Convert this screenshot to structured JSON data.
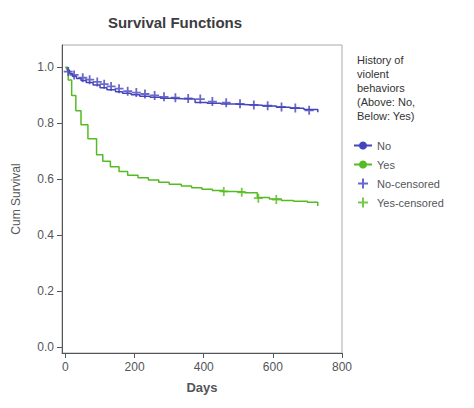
{
  "chart_data": {
    "type": "line",
    "title": "Survival Functions",
    "xlabel": "Days",
    "ylabel": "Cum Survival",
    "xlim": [
      -10,
      800
    ],
    "ylim": [
      -0.02,
      1.08
    ],
    "xticks": [
      0,
      200,
      400,
      600,
      800
    ],
    "yticks": [
      {
        "value": 0.0,
        "label": "0.0"
      },
      0.2,
      0.4,
      0.6,
      0.8,
      {
        "value": 1.0,
        "label": "1.0"
      }
    ],
    "grid": false,
    "legend": "right",
    "legend_title": "History of\nviolent\nbehaviors\n(Above: No,\nBelow: Yes)",
    "series": [
      {
        "name": "No",
        "type": "line",
        "line_style": "step",
        "color": "#4444BB",
        "x": [
          0,
          5,
          12,
          20,
          32,
          45,
          60,
          80,
          100,
          120,
          145,
          165,
          190,
          215,
          245,
          275,
          305,
          340,
          375,
          410,
          450,
          490,
          530,
          570,
          610,
          650,
          690,
          730
        ],
        "values": [
          1.0,
          0.99,
          0.978,
          0.968,
          0.96,
          0.953,
          0.946,
          0.937,
          0.927,
          0.92,
          0.913,
          0.908,
          0.902,
          0.897,
          0.893,
          0.89,
          0.888,
          0.887,
          0.875,
          0.872,
          0.869,
          0.867,
          0.865,
          0.862,
          0.858,
          0.854,
          0.85,
          0.84
        ]
      },
      {
        "name": "Yes",
        "type": "line",
        "line_style": "step",
        "color": "#55BB22",
        "x": [
          0,
          8,
          18,
          30,
          45,
          65,
          90,
          108,
          130,
          155,
          180,
          210,
          240,
          270,
          300,
          335,
          365,
          395,
          425,
          455,
          490,
          520,
          555,
          590,
          625,
          660,
          700,
          730
        ],
        "values": [
          1.0,
          0.955,
          0.9,
          0.845,
          0.795,
          0.745,
          0.688,
          0.665,
          0.645,
          0.628,
          0.615,
          0.606,
          0.598,
          0.59,
          0.583,
          0.576,
          0.57,
          0.565,
          0.56,
          0.557,
          0.555,
          0.552,
          0.535,
          0.53,
          0.525,
          0.522,
          0.518,
          0.505
        ]
      },
      {
        "name": "No-censored",
        "type": "scatter",
        "marker": "+",
        "color": "#4444BB",
        "x": [
          8,
          25,
          50,
          70,
          92,
          112,
          132,
          155,
          180,
          205,
          230,
          258,
          285,
          318,
          355,
          390,
          425,
          465,
          505,
          545,
          585,
          625,
          665,
          705
        ],
        "values": [
          0.985,
          0.973,
          0.963,
          0.956,
          0.948,
          0.94,
          0.932,
          0.924,
          0.915,
          0.91,
          0.905,
          0.9,
          0.895,
          0.892,
          0.889,
          0.887,
          0.878,
          0.874,
          0.87,
          0.866,
          0.863,
          0.859,
          0.855,
          0.847
        ]
      },
      {
        "name": "Yes-censored",
        "type": "scatter",
        "marker": "+",
        "color": "#55BB22",
        "x": [
          458,
          510,
          558,
          610
        ],
        "values": [
          0.557,
          0.554,
          0.533,
          0.528
        ]
      }
    ]
  }
}
